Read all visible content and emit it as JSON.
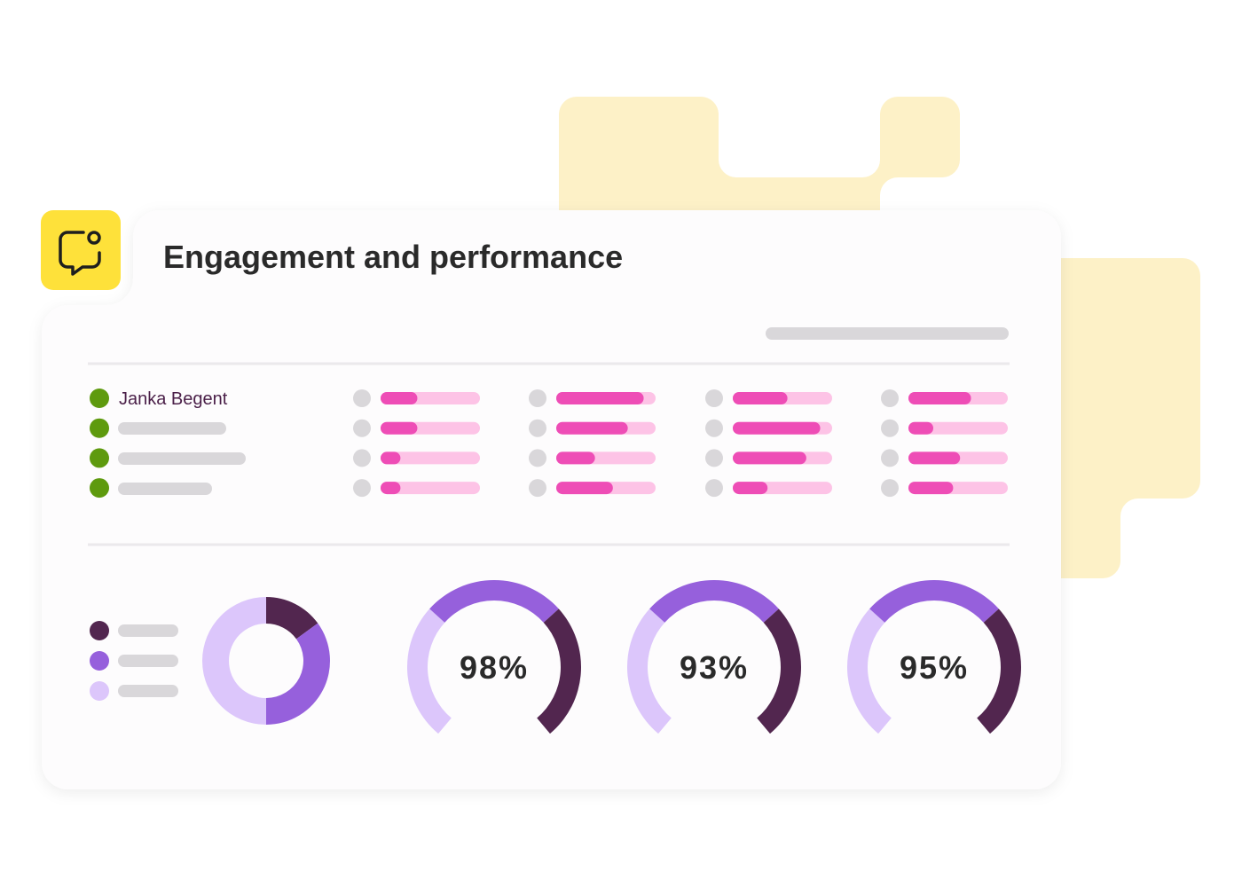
{
  "header": {
    "title": "Engagement and performance"
  },
  "table": {
    "first_name": "Janka Begent",
    "range": [
      0,
      100
    ],
    "rows": [
      [
        37,
        88,
        55,
        63
      ],
      [
        37,
        72,
        88,
        25
      ],
      [
        20,
        39,
        74,
        52
      ],
      [
        20,
        57,
        35,
        45
      ]
    ]
  },
  "donut": {
    "values": [
      15,
      35,
      50
    ],
    "colors": [
      "#52264f",
      "#9660dc",
      "#dcc6fb"
    ]
  },
  "gauges": [
    {
      "value": 98,
      "label": "98%"
    },
    {
      "value": 93,
      "label": "93%"
    },
    {
      "value": 95,
      "label": "95%"
    }
  ]
}
